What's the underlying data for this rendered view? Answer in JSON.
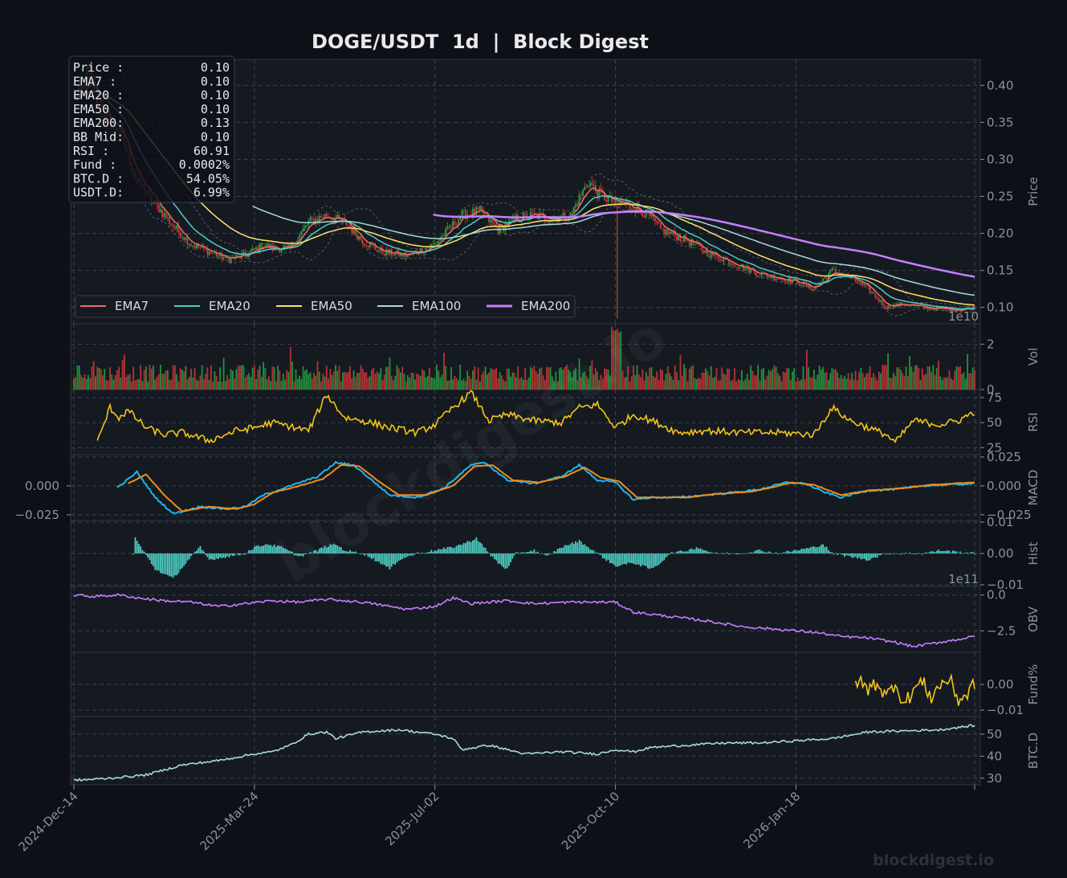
{
  "colors": {
    "background": "#0d1017",
    "panel": "#151a21",
    "grid": "#3a4150",
    "text": "#8b929c",
    "title": "#e8eaee",
    "up": "#26a641",
    "down": "#d13a3a",
    "ema7": "#f06a6a",
    "ema20": "#4ecdc4",
    "ema50": "#ffe26a",
    "ema100": "#a8dadc",
    "ema200": "#c77dff",
    "rsi": "#f5c518",
    "macd": "#1fb5f0",
    "signal": "#f08c1a",
    "hist": "#4ecdc4",
    "obv": "#c77dff",
    "fund": "#f5c518",
    "btcd": "#a8dadc"
  },
  "chart_data": {
    "type": "candlestick",
    "title": "DOGE/USDT  1d  |  Block Digest",
    "watermark": "blockdigest.io",
    "footer": "blockdigest.io",
    "x_ticks": [
      "2024-Dec-14",
      "2025-Mar-24",
      "2025-Jul-02",
      "2025-Oct-10",
      "2026-Jan-18"
    ],
    "legend": [
      "EMA7",
      "EMA20",
      "EMA50",
      "EMA100",
      "EMA200"
    ],
    "info_box": [
      {
        "label": "Price :",
        "value": "0.10"
      },
      {
        "label": "EMA7  :",
        "value": "0.10"
      },
      {
        "label": "EMA20 :",
        "value": "0.10"
      },
      {
        "label": "EMA50 :",
        "value": "0.10"
      },
      {
        "label": "EMA200:",
        "value": "0.13"
      },
      {
        "label": "BB Mid:",
        "value": "0.10"
      },
      {
        "label": "RSI   :",
        "value": "60.91"
      },
      {
        "label": "Fund  :",
        "value": "0.0002%"
      },
      {
        "label": "BTC.D :",
        "value": "54.05%"
      },
      {
        "label": "USDT.D:",
        "value": "6.99%"
      }
    ],
    "panels": [
      {
        "name": "price",
        "ylabel": "Price",
        "ylim": [
          0.078,
          0.435
        ],
        "ticks": [
          "0.10",
          "0.15",
          "0.20",
          "0.25",
          "0.30",
          "0.35",
          "0.40"
        ],
        "tick_values": [
          0.1,
          0.15,
          0.2,
          0.25,
          0.3,
          0.35,
          0.4
        ],
        "corner": "1e10"
      },
      {
        "name": "volume",
        "ylabel": "Vol",
        "ylim": [
          0,
          2.9
        ],
        "ticks": [
          "0",
          "2"
        ],
        "tick_values": [
          0,
          2
        ]
      },
      {
        "name": "rsi",
        "ylabel": "RSI",
        "ylim": [
          18,
          83
        ],
        "ticks": [
          "25",
          "50",
          "75"
        ],
        "tick_values": [
          25,
          50,
          75
        ]
      },
      {
        "name": "macd",
        "ylabel": "MACD",
        "ylim": [
          -0.03,
          0.027
        ],
        "ticks": [
          "−0.025",
          "0.000",
          "0.025"
        ],
        "tick_values": [
          -0.025,
          0,
          0.025
        ],
        "left_ticks": [
          "0.000",
          "−0.025"
        ],
        "left_tick_values": [
          0,
          -0.025
        ]
      },
      {
        "name": "hist",
        "ylabel": "Hist",
        "ylim": [
          -0.0105,
          0.0105
        ],
        "ticks": [
          "−0.01",
          "0.00",
          "0.01"
        ],
        "tick_values": [
          -0.01,
          0,
          0.01
        ],
        "corner": "1e11"
      },
      {
        "name": "obv",
        "ylabel": "OBV",
        "ylim": [
          -4.0,
          0.6
        ],
        "ticks": [
          "−2.5",
          "0.0"
        ],
        "tick_values": [
          -2.5,
          0
        ]
      },
      {
        "name": "fund",
        "ylabel": "Fund%",
        "ylim": [
          -0.0125,
          0.0125
        ],
        "ticks": [
          "−0.01",
          "0.00"
        ],
        "tick_values": [
          -0.01,
          0
        ]
      },
      {
        "name": "btcd",
        "ylabel": "BTC.D",
        "ylim": [
          27,
          58
        ],
        "ticks": [
          "30",
          "40",
          "50"
        ],
        "tick_values": [
          30,
          40,
          50
        ]
      }
    ],
    "days": 500,
    "price_knots": [
      [
        0,
        0.38
      ],
      [
        8,
        0.42
      ],
      [
        15,
        0.36
      ],
      [
        25,
        0.34
      ],
      [
        35,
        0.27
      ],
      [
        45,
        0.24
      ],
      [
        55,
        0.21
      ],
      [
        65,
        0.185
      ],
      [
        75,
        0.175
      ],
      [
        85,
        0.165
      ],
      [
        95,
        0.17
      ],
      [
        105,
        0.185
      ],
      [
        110,
        0.18
      ],
      [
        120,
        0.18
      ],
      [
        130,
        0.215
      ],
      [
        140,
        0.225
      ],
      [
        150,
        0.215
      ],
      [
        160,
        0.19
      ],
      [
        170,
        0.175
      ],
      [
        185,
        0.17
      ],
      [
        200,
        0.185
      ],
      [
        215,
        0.225
      ],
      [
        225,
        0.23
      ],
      [
        235,
        0.205
      ],
      [
        245,
        0.22
      ],
      [
        255,
        0.225
      ],
      [
        265,
        0.22
      ],
      [
        275,
        0.225
      ],
      [
        285,
        0.27
      ],
      [
        290,
        0.255
      ],
      [
        300,
        0.24
      ],
      [
        305,
        0.24
      ],
      [
        315,
        0.23
      ],
      [
        320,
        0.22
      ],
      [
        325,
        0.205
      ],
      [
        340,
        0.19
      ],
      [
        350,
        0.175
      ],
      [
        360,
        0.165
      ],
      [
        370,
        0.155
      ],
      [
        380,
        0.145
      ],
      [
        390,
        0.14
      ],
      [
        400,
        0.135
      ],
      [
        410,
        0.125
      ],
      [
        420,
        0.15
      ],
      [
        430,
        0.14
      ],
      [
        440,
        0.125
      ],
      [
        450,
        0.1
      ],
      [
        460,
        0.105
      ],
      [
        470,
        0.1
      ],
      [
        480,
        0.098
      ],
      [
        490,
        0.097
      ],
      [
        499,
        0.1
      ]
    ],
    "rsi_knots": [
      [
        13,
        30
      ],
      [
        20,
        65
      ],
      [
        25,
        55
      ],
      [
        30,
        62
      ],
      [
        40,
        45
      ],
      [
        50,
        38
      ],
      [
        60,
        40
      ],
      [
        75,
        32
      ],
      [
        90,
        42
      ],
      [
        100,
        45
      ],
      [
        110,
        50
      ],
      [
        130,
        42
      ],
      [
        140,
        78
      ],
      [
        150,
        55
      ],
      [
        160,
        52
      ],
      [
        175,
        45
      ],
      [
        190,
        40
      ],
      [
        200,
        48
      ],
      [
        210,
        65
      ],
      [
        220,
        80
      ],
      [
        230,
        52
      ],
      [
        240,
        58
      ],
      [
        255,
        52
      ],
      [
        270,
        50
      ],
      [
        280,
        65
      ],
      [
        290,
        68
      ],
      [
        300,
        45
      ],
      [
        310,
        58
      ],
      [
        320,
        52
      ],
      [
        335,
        40
      ],
      [
        350,
        42
      ],
      [
        370,
        40
      ],
      [
        390,
        40
      ],
      [
        410,
        38
      ],
      [
        420,
        65
      ],
      [
        430,
        52
      ],
      [
        440,
        45
      ],
      [
        450,
        38
      ],
      [
        455,
        30
      ],
      [
        465,
        52
      ],
      [
        480,
        48
      ],
      [
        490,
        52
      ],
      [
        499,
        61
      ]
    ],
    "macd_knots": [
      [
        24,
        -0.002
      ],
      [
        35,
        0.012
      ],
      [
        45,
        -0.01
      ],
      [
        55,
        -0.024
      ],
      [
        70,
        -0.018
      ],
      [
        85,
        -0.02
      ],
      [
        95,
        -0.018
      ],
      [
        105,
        -0.008
      ],
      [
        120,
        0
      ],
      [
        135,
        0.008
      ],
      [
        145,
        0.02
      ],
      [
        155,
        0.018
      ],
      [
        165,
        0.005
      ],
      [
        175,
        -0.008
      ],
      [
        190,
        -0.01
      ],
      [
        205,
        -0.002
      ],
      [
        220,
        0.018
      ],
      [
        228,
        0.02
      ],
      [
        240,
        0.005
      ],
      [
        255,
        0.002
      ],
      [
        270,
        0.008
      ],
      [
        280,
        0.018
      ],
      [
        290,
        0.005
      ],
      [
        300,
        0.003
      ],
      [
        310,
        -0.012
      ],
      [
        320,
        -0.01
      ],
      [
        335,
        -0.01
      ],
      [
        350,
        -0.008
      ],
      [
        370,
        -0.005
      ],
      [
        380,
        -0.003
      ],
      [
        395,
        0.003
      ],
      [
        405,
        0.002
      ],
      [
        415,
        -0.005
      ],
      [
        425,
        -0.01
      ],
      [
        440,
        -0.004
      ],
      [
        455,
        -0.003
      ],
      [
        470,
        0
      ],
      [
        499,
        0.002
      ]
    ],
    "signal_knots": [
      [
        30,
        0.002
      ],
      [
        40,
        0.01
      ],
      [
        50,
        -0.008
      ],
      [
        60,
        -0.022
      ],
      [
        75,
        -0.018
      ],
      [
        90,
        -0.02
      ],
      [
        100,
        -0.016
      ],
      [
        110,
        -0.006
      ],
      [
        125,
        0
      ],
      [
        138,
        0.006
      ],
      [
        148,
        0.018
      ],
      [
        158,
        0.017
      ],
      [
        168,
        0.005
      ],
      [
        180,
        -0.008
      ],
      [
        195,
        -0.008
      ],
      [
        210,
        0
      ],
      [
        222,
        0.017
      ],
      [
        232,
        0.018
      ],
      [
        243,
        0.005
      ],
      [
        258,
        0.003
      ],
      [
        272,
        0.008
      ],
      [
        283,
        0.016
      ],
      [
        292,
        0.007
      ],
      [
        302,
        0.004
      ],
      [
        312,
        -0.01
      ],
      [
        322,
        -0.01
      ],
      [
        340,
        -0.01
      ],
      [
        355,
        -0.007
      ],
      [
        375,
        -0.005
      ],
      [
        385,
        -0.002
      ],
      [
        398,
        0.003
      ],
      [
        410,
        0.001
      ],
      [
        425,
        -0.008
      ],
      [
        440,
        -0.004
      ],
      [
        460,
        -0.002
      ],
      [
        475,
        0.001
      ],
      [
        499,
        0.003
      ]
    ],
    "hist_knots": [
      [
        33,
        0
      ],
      [
        34,
        0.005
      ],
      [
        36,
        0.003
      ],
      [
        45,
        -0.005
      ],
      [
        55,
        -0.008
      ],
      [
        65,
        -0.001
      ],
      [
        70,
        0.002
      ],
      [
        75,
        -0.002
      ],
      [
        85,
        -0.001
      ],
      [
        95,
        0
      ],
      [
        100,
        0.002
      ],
      [
        107,
        0.003
      ],
      [
        115,
        0.002
      ],
      [
        125,
        -0.001
      ],
      [
        135,
        0.001
      ],
      [
        138,
        0.002
      ],
      [
        145,
        0.003
      ],
      [
        150,
        0.001
      ],
      [
        160,
        0
      ],
      [
        170,
        -0.003
      ],
      [
        175,
        -0.005
      ],
      [
        180,
        -0.002
      ],
      [
        190,
        0
      ],
      [
        200,
        0.001
      ],
      [
        210,
        0.002
      ],
      [
        220,
        0.004
      ],
      [
        223,
        0.005
      ],
      [
        230,
        0
      ],
      [
        235,
        -0.003
      ],
      [
        240,
        -0.005
      ],
      [
        245,
        0
      ],
      [
        255,
        0.001
      ],
      [
        262,
        -0.001
      ],
      [
        270,
        0.002
      ],
      [
        280,
        0.004
      ],
      [
        290,
        0
      ],
      [
        300,
        -0.004
      ],
      [
        310,
        -0.003
      ],
      [
        320,
        -0.005
      ],
      [
        325,
        -0.003
      ],
      [
        330,
        0
      ],
      [
        340,
        0.001
      ],
      [
        345,
        0.002
      ],
      [
        355,
        0
      ],
      [
        370,
        0
      ],
      [
        380,
        0.001
      ],
      [
        390,
        0
      ],
      [
        410,
        0.002
      ],
      [
        415,
        0.003
      ],
      [
        420,
        0
      ],
      [
        430,
        -0.001
      ],
      [
        440,
        -0.002
      ],
      [
        450,
        0
      ],
      [
        470,
        0
      ],
      [
        480,
        0.001
      ],
      [
        499,
        0
      ]
    ],
    "obv_knots": [
      [
        0,
        0
      ],
      [
        10,
        -0.1
      ],
      [
        25,
        0
      ],
      [
        35,
        -0.2
      ],
      [
        50,
        -0.4
      ],
      [
        65,
        -0.5
      ],
      [
        80,
        -0.8
      ],
      [
        95,
        -0.6
      ],
      [
        110,
        -0.4
      ],
      [
        125,
        -0.5
      ],
      [
        140,
        -0.3
      ],
      [
        160,
        -0.5
      ],
      [
        185,
        -1.0
      ],
      [
        200,
        -0.8
      ],
      [
        210,
        -0.2
      ],
      [
        220,
        -0.6
      ],
      [
        240,
        -0.4
      ],
      [
        255,
        -0.6
      ],
      [
        275,
        -0.5
      ],
      [
        300,
        -0.5
      ],
      [
        310,
        -1.2
      ],
      [
        330,
        -1.5
      ],
      [
        350,
        -1.8
      ],
      [
        370,
        -2.2
      ],
      [
        390,
        -2.4
      ],
      [
        410,
        -2.6
      ],
      [
        425,
        -2.9
      ],
      [
        440,
        -3.0
      ],
      [
        455,
        -3.3
      ],
      [
        465,
        -3.6
      ],
      [
        480,
        -3.3
      ],
      [
        499,
        -2.9
      ]
    ],
    "fund_knots": [
      [
        433,
        0.002
      ],
      [
        440,
        -0.002
      ],
      [
        445,
        0.001
      ],
      [
        450,
        -0.005
      ],
      [
        455,
        0.001
      ],
      [
        460,
        -0.008
      ],
      [
        465,
        -0.002
      ],
      [
        470,
        0.001
      ],
      [
        475,
        -0.005
      ],
      [
        480,
        0
      ],
      [
        485,
        0.002
      ],
      [
        490,
        -0.006
      ],
      [
        495,
        -0.004
      ],
      [
        499,
        0.001
      ]
    ],
    "btcd_knots": [
      [
        0,
        29
      ],
      [
        20,
        30
      ],
      [
        40,
        31.5
      ],
      [
        60,
        36
      ],
      [
        80,
        38
      ],
      [
        100,
        41
      ],
      [
        110,
        42
      ],
      [
        120,
        45
      ],
      [
        130,
        50
      ],
      [
        140,
        51
      ],
      [
        145,
        48
      ],
      [
        160,
        51
      ],
      [
        180,
        52
      ],
      [
        190,
        51
      ],
      [
        200,
        50
      ],
      [
        210,
        48
      ],
      [
        215,
        43
      ],
      [
        230,
        45
      ],
      [
        250,
        41
      ],
      [
        270,
        42
      ],
      [
        290,
        41
      ],
      [
        300,
        43
      ],
      [
        310,
        42
      ],
      [
        320,
        44
      ],
      [
        340,
        45
      ],
      [
        360,
        46
      ],
      [
        380,
        46
      ],
      [
        400,
        47
      ],
      [
        420,
        48
      ],
      [
        440,
        51
      ],
      [
        460,
        51.5
      ],
      [
        480,
        52
      ],
      [
        499,
        54
      ]
    ],
    "date_start": "2024-Dec-14"
  }
}
